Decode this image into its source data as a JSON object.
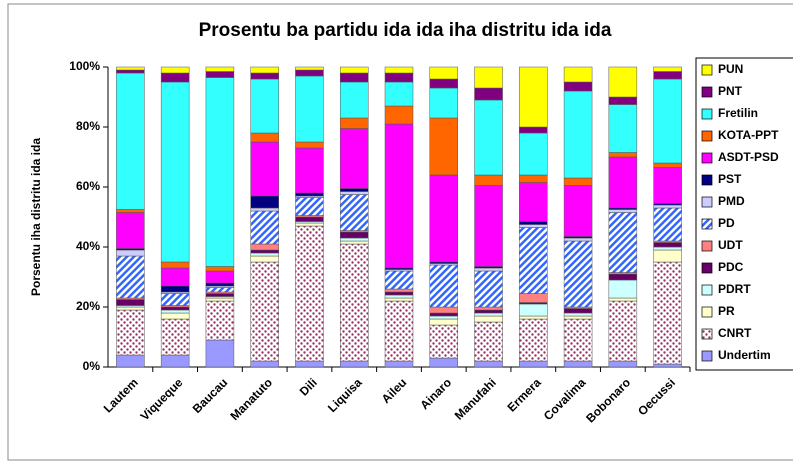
{
  "chart_data": {
    "type": "stacked_bar",
    "title": "Prosentu ba partidu ida ida iha distritu ida ida",
    "y_label": "Porsentu iha distritu ida ida",
    "categories": [
      "Lautem",
      "Viqueque",
      "Baucau",
      "Manatuto",
      "Dili",
      "Liquisa",
      "Aileu",
      "Ainaro",
      "Manufahi",
      "Ermera",
      "Covalima",
      "Bobonaro",
      "Oecussi"
    ],
    "ylim": [
      0,
      100
    ],
    "yticks": [
      {
        "value": 0,
        "label": "0%"
      },
      {
        "value": 20,
        "label": "20%"
      },
      {
        "value": 40,
        "label": "40%"
      },
      {
        "value": 60,
        "label": "60%"
      },
      {
        "value": 80,
        "label": "80%"
      },
      {
        "value": 100,
        "label": "100%"
      }
    ],
    "legend": "right",
    "series": [
      {
        "name": "Undertim",
        "color": "#9999ff",
        "values": [
          4,
          4,
          9,
          2,
          2,
          2,
          2,
          3,
          2,
          2,
          2,
          2,
          1
        ]
      },
      {
        "name": "CNRT",
        "color": "#993366",
        "pattern": "dots",
        "values": [
          15,
          12,
          13,
          33,
          45,
          39,
          20,
          11,
          13,
          14,
          14,
          20,
          34
        ]
      },
      {
        "name": "PR",
        "color": "#ffffcc",
        "values": [
          1,
          2,
          1,
          2,
          1,
          1,
          1,
          2,
          2,
          1,
          1,
          1,
          4
        ]
      },
      {
        "name": "PDRT",
        "color": "#ccffff",
        "values": [
          0.5,
          1,
          0.5,
          1,
          0.5,
          1,
          1,
          1,
          1,
          4,
          1,
          6,
          1
        ]
      },
      {
        "name": "PDC",
        "color": "#660066",
        "values": [
          2,
          1,
          1,
          1,
          1.5,
          2,
          1,
          1,
          1,
          0.5,
          1.5,
          2,
          1.5
        ]
      },
      {
        "name": "UDT",
        "color": "#ff8080",
        "values": [
          0.5,
          0.5,
          0.5,
          2,
          0.5,
          0.5,
          1,
          2,
          1,
          3,
          0.5,
          0.5,
          0.5
        ]
      },
      {
        "name": "PD",
        "color": "#3366ff",
        "pattern": "hatch",
        "values": [
          14,
          4,
          1.5,
          11,
          6,
          12,
          6,
          14,
          12,
          22,
          22,
          20,
          11
        ]
      },
      {
        "name": "PMD",
        "color": "#ccccff",
        "values": [
          2,
          0.5,
          0.5,
          1,
          0.5,
          1,
          0.5,
          0.5,
          1,
          1,
          1,
          1,
          1
        ]
      },
      {
        "name": "PST",
        "color": "#000080",
        "values": [
          0.5,
          2,
          1,
          4,
          1,
          1,
          0.5,
          0.5,
          0.5,
          1,
          0.5,
          0.5,
          0.5
        ]
      },
      {
        "name": "ASDT-PSD",
        "color": "#ff00ff",
        "values": [
          12,
          6,
          4,
          18,
          15,
          20,
          48,
          29,
          27,
          13,
          17,
          17,
          12
        ]
      },
      {
        "name": "KOTA-PPT",
        "color": "#ff6600",
        "values": [
          1,
          2,
          1.5,
          3,
          2,
          3.5,
          6,
          19,
          3.5,
          2.5,
          2.5,
          1.5,
          1.5
        ]
      },
      {
        "name": "Fretilin",
        "color": "#33ffff",
        "values": [
          45.5,
          60,
          63,
          18,
          22,
          12,
          8,
          10,
          25,
          14,
          29,
          16,
          28
        ]
      },
      {
        "name": "PNT",
        "color": "#800080",
        "values": [
          1,
          3,
          2,
          2,
          2,
          3,
          3,
          3,
          4,
          2,
          3,
          2.5,
          2.5
        ]
      },
      {
        "name": "PUN",
        "color": "#ffff00",
        "values": [
          1,
          2,
          1.5,
          2,
          1,
          2,
          2,
          4,
          7,
          20,
          5,
          10,
          1.5
        ]
      }
    ]
  }
}
